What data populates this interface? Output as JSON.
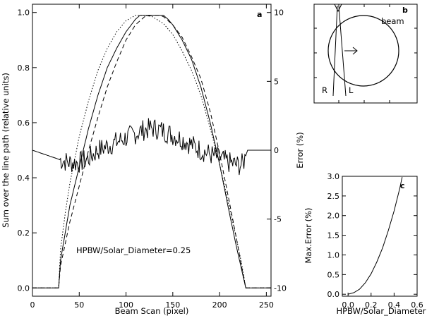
{
  "chart_data": [
    {
      "panel": "a",
      "type": "line",
      "panel_label": "a",
      "xlabel": "Beam Scan (pixel)",
      "ylabel_left": "Sum over the line path (relative units)",
      "ylabel_right": "Error (%)",
      "xlim": [
        0,
        255
      ],
      "ylim_left": [
        -0.03,
        1.03
      ],
      "ylim_right": [
        -10.6,
        10.6
      ],
      "xticks": [
        "0",
        "50",
        "100",
        "150",
        "200",
        "250"
      ],
      "yticks_left": [
        "0.0",
        "0.2",
        "0.4",
        "0.6",
        "0.8",
        "1.0"
      ],
      "yticks_right": [
        "-10",
        "-5",
        "0",
        "5",
        "10"
      ],
      "annotation": "HPBW/Solar_Diameter=0.25",
      "series": [
        {
          "style": "solid",
          "x": [
            0,
            28,
            30,
            35,
            40,
            50,
            60,
            70,
            80,
            90,
            100,
            110,
            115,
            128,
            140,
            145,
            150,
            160,
            170,
            180,
            190,
            200,
            210,
            218,
            224,
            226,
            228,
            255
          ],
          "values": [
            0,
            0,
            0.1,
            0.2,
            0.3,
            0.44,
            0.58,
            0.7,
            0.8,
            0.87,
            0.93,
            0.975,
            0.99,
            0.99,
            0.99,
            0.975,
            0.955,
            0.9,
            0.83,
            0.73,
            0.6,
            0.45,
            0.28,
            0.15,
            0.06,
            0.03,
            0,
            0
          ]
        },
        {
          "style": "dashed",
          "x": [
            0,
            28,
            30,
            35,
            40,
            50,
            60,
            70,
            80,
            90,
            100,
            110,
            120,
            128,
            135,
            140,
            150,
            160,
            170,
            180,
            190,
            200,
            210,
            218,
            224,
            228,
            255
          ],
          "values": [
            0,
            0,
            0.08,
            0.16,
            0.24,
            0.37,
            0.5,
            0.62,
            0.73,
            0.82,
            0.9,
            0.955,
            0.985,
            0.99,
            0.99,
            0.985,
            0.955,
            0.91,
            0.84,
            0.76,
            0.64,
            0.49,
            0.32,
            0.18,
            0.07,
            0,
            0
          ]
        },
        {
          "style": "dotted",
          "x": [
            0,
            28,
            30,
            35,
            40,
            50,
            60,
            70,
            80,
            90,
            100,
            110,
            120,
            128,
            140,
            150,
            160,
            170,
            180,
            190,
            200,
            210,
            218,
            224,
            228,
            255
          ],
          "values": [
            0,
            0,
            0.14,
            0.27,
            0.38,
            0.55,
            0.68,
            0.79,
            0.87,
            0.93,
            0.97,
            0.99,
            0.99,
            0.985,
            0.96,
            0.92,
            0.86,
            0.79,
            0.7,
            0.58,
            0.45,
            0.3,
            0.18,
            0.08,
            0,
            0
          ]
        },
        {
          "style": "solid-noisy",
          "axis": "right",
          "x": [
            0,
            30,
            40,
            50,
            60,
            70,
            80,
            90,
            100,
            110,
            120,
            130,
            140,
            150,
            160,
            170,
            180,
            190,
            200,
            210,
            220,
            225,
            230,
            255
          ],
          "values": [
            0,
            -0.7,
            -0.9,
            -0.9,
            -0.6,
            0,
            0.3,
            0.6,
            0.9,
            1.2,
            1.5,
            1.6,
            1.4,
            1.1,
            0.8,
            0.4,
            0,
            -0.3,
            -0.6,
            -0.9,
            -1.1,
            -1.0,
            0,
            0
          ]
        }
      ]
    },
    {
      "panel": "b",
      "type": "diagram",
      "panel_label": "b",
      "labels": [
        "beam",
        "R",
        "L"
      ]
    },
    {
      "panel": "c",
      "type": "line",
      "panel_label": "c",
      "xlabel": "HPBW/Solar_Diameter",
      "ylabel": "Max.Error (%)",
      "xlim": [
        -0.05,
        0.6
      ],
      "ylim": [
        -0.05,
        3.0
      ],
      "xticks": [
        "0.0",
        "0.2",
        "0.4",
        "0.6"
      ],
      "yticks": [
        "0.0",
        "0.5",
        "1.0",
        "1.5",
        "2.0",
        "2.5",
        "3.0"
      ],
      "x": [
        0.0,
        0.05,
        0.1,
        0.15,
        0.2,
        0.25,
        0.3,
        0.35,
        0.4,
        0.45,
        0.47
      ],
      "values": [
        0.0,
        0.04,
        0.13,
        0.29,
        0.52,
        0.82,
        1.18,
        1.62,
        2.12,
        2.7,
        2.98
      ]
    }
  ]
}
